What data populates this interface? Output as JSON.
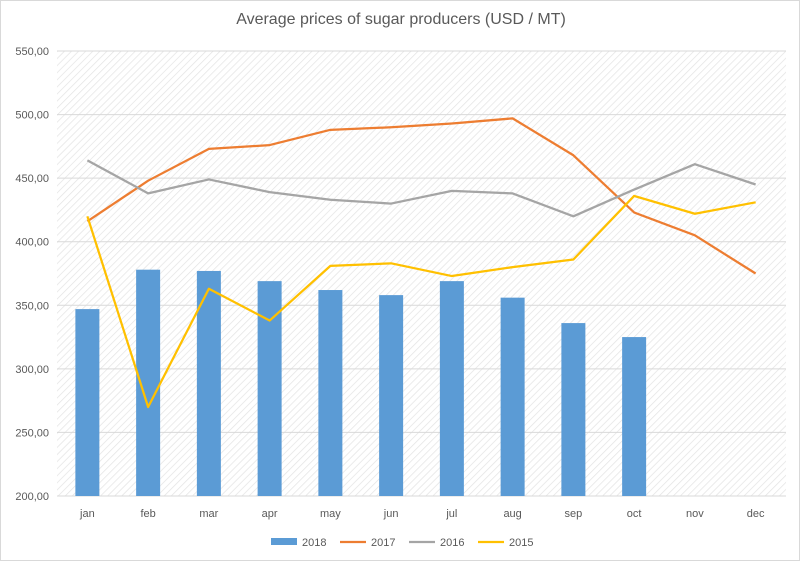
{
  "chart_data": {
    "type": "bar",
    "title": "Average prices of sugar producers (USD / MT)",
    "categories": [
      "jan",
      "feb",
      "mar",
      "apr",
      "may",
      "jun",
      "jul",
      "aug",
      "sep",
      "oct",
      "nov",
      "dec"
    ],
    "ylim": [
      200,
      550
    ],
    "y_ticks": [
      "200,00",
      "250,00",
      "300,00",
      "350,00",
      "400,00",
      "450,00",
      "500,00",
      "550,00"
    ],
    "grid": true,
    "legend_position": "bottom",
    "series": [
      {
        "name": "2018",
        "kind": "bar",
        "color": "#5b9bd5",
        "values": [
          347,
          378,
          377,
          369,
          362,
          358,
          369,
          356,
          336,
          325,
          null,
          null
        ]
      },
      {
        "name": "2017",
        "kind": "line",
        "color": "#ed7d31",
        "values": [
          416,
          448,
          473,
          476,
          488,
          490,
          493,
          497,
          468,
          423,
          405,
          375
        ]
      },
      {
        "name": "2016",
        "kind": "line",
        "color": "#a5a5a5",
        "values": [
          464,
          438,
          449,
          439,
          433,
          430,
          440,
          438,
          420,
          441,
          461,
          445
        ]
      },
      {
        "name": "2015",
        "kind": "line",
        "color": "#ffc000",
        "values": [
          420,
          270,
          363,
          338,
          381,
          383,
          373,
          380,
          386,
          436,
          422,
          431
        ]
      }
    ]
  }
}
